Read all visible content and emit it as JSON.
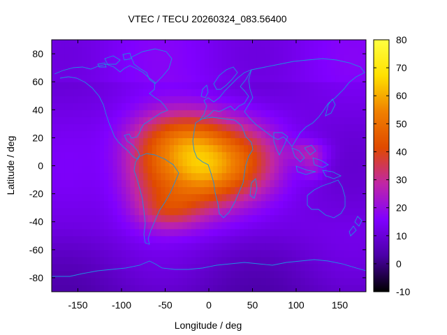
{
  "chart_data": {
    "type": "heatmap",
    "title": "VTEC / TECU 20260324_083.56400",
    "xlabel": "Longitude / deg",
    "ylabel": "Latitude / deg",
    "xlim": [
      -180,
      180
    ],
    "ylim": [
      -90,
      90
    ],
    "x_ticks": [
      -150,
      -100,
      -50,
      0,
      50,
      100,
      150
    ],
    "y_ticks": [
      -80,
      -60,
      -40,
      -20,
      0,
      20,
      40,
      60,
      80
    ],
    "colorbar": {
      "range": [
        -10,
        80
      ],
      "ticks": [
        -10,
        0,
        10,
        20,
        30,
        40,
        50,
        60,
        70,
        80
      ],
      "colors": [
        "#000000",
        "#4b00a6",
        "#8000ff",
        "#c026a6",
        "#e04a00",
        "#f08000",
        "#ffe000",
        "#ffff40"
      ]
    },
    "grid": false,
    "field_description_peak": {
      "lon": -10,
      "lat": -3,
      "value": 77
    },
    "field_components": [
      {
        "lon": -10,
        "lat": -3,
        "value": 45,
        "spread_lon": 38,
        "spread_lat": 20
      },
      {
        "lon": -30,
        "lat": 22,
        "value": 22,
        "spread_lon": 40,
        "spread_lat": 15
      },
      {
        "lon": -70,
        "lat": -5,
        "value": 15,
        "spread_lon": 25,
        "spread_lat": 22
      },
      {
        "lon": -45,
        "lat": -32,
        "value": 15,
        "spread_lon": 25,
        "spread_lat": 10
      },
      {
        "lon": 50,
        "lat": 5,
        "value": 14,
        "spread_lon": 28,
        "spread_lat": 18
      },
      {
        "lon": 115,
        "lat": 10,
        "value": 12,
        "spread_lon": 15,
        "spread_lat": 6
      },
      {
        "lon": 120,
        "lat": -2,
        "value": 8,
        "spread_lon": 10,
        "spread_lat": 6
      }
    ],
    "background_value": 12
  }
}
